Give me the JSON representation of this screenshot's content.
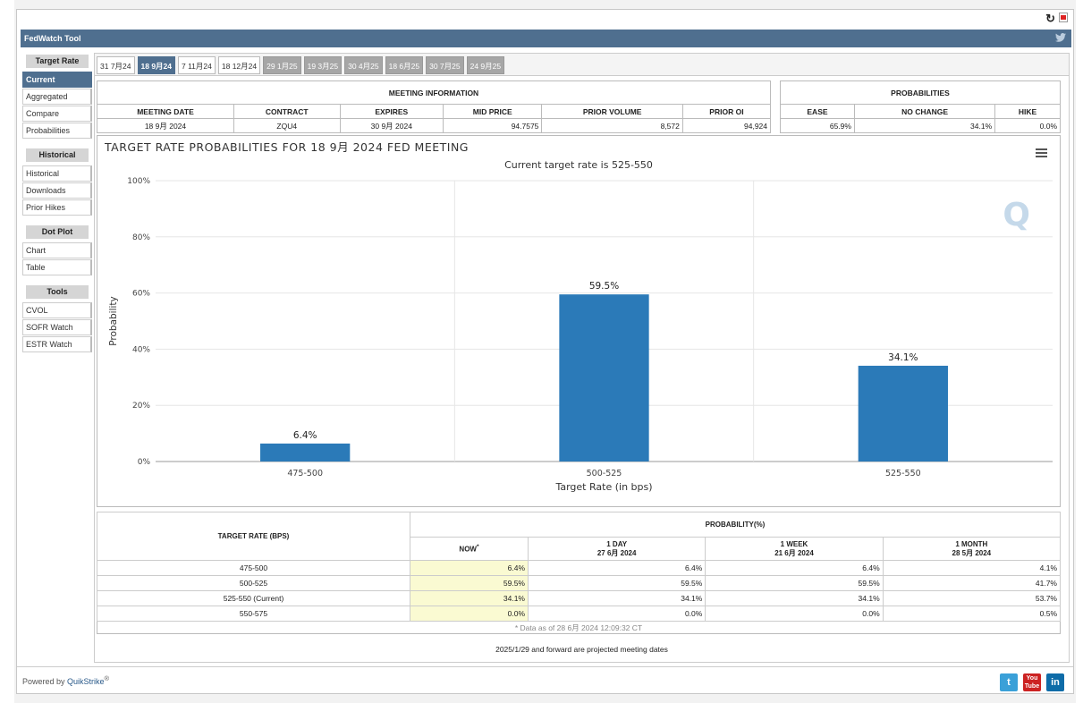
{
  "app": {
    "title": "FedWatch Tool",
    "powered_by": "Powered by ",
    "brand": "QuikStrike",
    "brand_mark": "®"
  },
  "sidebar": {
    "groups": [
      {
        "label": "Target Rate",
        "items": [
          "Current",
          "Aggregated",
          "Compare",
          "Probabilities"
        ]
      },
      {
        "label": "Historical",
        "items": [
          "Historical",
          "Downloads",
          "Prior Hikes"
        ]
      },
      {
        "label": "Dot Plot",
        "items": [
          "Chart",
          "Table"
        ]
      },
      {
        "label": "Tools",
        "items": [
          "CVOL",
          "SOFR Watch",
          "ESTR Watch"
        ]
      }
    ],
    "active_item": "Current"
  },
  "tabs": [
    {
      "label": "31 7月24",
      "state": "normal"
    },
    {
      "label": "18 9月24",
      "state": "active"
    },
    {
      "label": "7 11月24",
      "state": "normal"
    },
    {
      "label": "18 12月24",
      "state": "normal"
    },
    {
      "label": "29 1月25",
      "state": "gray"
    },
    {
      "label": "19 3月25",
      "state": "gray"
    },
    {
      "label": "30 4月25",
      "state": "gray"
    },
    {
      "label": "18 6月25",
      "state": "gray"
    },
    {
      "label": "30 7月25",
      "state": "gray"
    },
    {
      "label": "24 9月25",
      "state": "gray"
    }
  ],
  "meeting_info": {
    "title": "MEETING INFORMATION",
    "headers": [
      "MEETING DATE",
      "CONTRACT",
      "EXPIRES",
      "MID PRICE",
      "PRIOR VOLUME",
      "PRIOR OI"
    ],
    "values": [
      "18 9月 2024",
      "ZQU4",
      "30 9月 2024",
      "94.7575",
      "8,572",
      "94,924"
    ]
  },
  "probabilities": {
    "title": "PROBABILITIES",
    "headers": [
      "EASE",
      "NO CHANGE",
      "HIKE"
    ],
    "values": [
      "65.9%",
      "34.1%",
      "0.0%"
    ]
  },
  "chart_data": {
    "type": "bar",
    "title": "TARGET RATE PROBABILITIES FOR 18 9月 2024 FED MEETING",
    "subtitle": "Current target rate is 525-550",
    "xlabel": "Target Rate (in bps)",
    "ylabel": "Probability",
    "categories": [
      "475-500",
      "500-525",
      "525-550"
    ],
    "values": [
      6.4,
      59.5,
      34.1
    ],
    "data_labels": [
      "6.4%",
      "59.5%",
      "34.1%"
    ],
    "ylim": [
      0,
      100
    ],
    "yticks": [
      "0%",
      "20%",
      "40%",
      "60%",
      "80%",
      "100%"
    ],
    "bar_color": "#2b7ab8",
    "grid": true,
    "menu_icon": "hamburger-icon"
  },
  "prob_table": {
    "col1_header": "TARGET RATE (BPS)",
    "group_header": "PROBABILITY(%)",
    "now_label": "NOW",
    "now_mark": "*",
    "periods": [
      {
        "label": "1 DAY",
        "date": "27 6月 2024"
      },
      {
        "label": "1 WEEK",
        "date": "21 6月 2024"
      },
      {
        "label": "1 MONTH",
        "date": "28 5月 2024"
      }
    ],
    "rows": [
      {
        "rate": "475-500",
        "now": "6.4%",
        "d1": "6.4%",
        "w1": "6.4%",
        "m1": "4.1%"
      },
      {
        "rate": "500-525",
        "now": "59.5%",
        "d1": "59.5%",
        "w1": "59.5%",
        "m1": "41.7%"
      },
      {
        "rate": "525-550 (Current)",
        "now": "34.1%",
        "d1": "34.1%",
        "w1": "34.1%",
        "m1": "53.7%"
      },
      {
        "rate": "550-575",
        "now": "0.0%",
        "d1": "0.0%",
        "w1": "0.0%",
        "m1": "0.5%"
      }
    ],
    "data_note": "* Data as of 28 6月 2024 12:09:32 CT"
  },
  "footnote": "2025/1/29 and forward are projected meeting dates",
  "colors": {
    "header_blue": "#4f6f8f",
    "twitter": "#3aa0d8",
    "youtube": "#cc2222",
    "linkedin": "#0e6ca8"
  },
  "icons": {
    "refresh": "refresh-icon",
    "pdf": "pdf-icon",
    "twitter": "twitter-icon",
    "youtube": "youtube-icon",
    "linkedin": "linkedin-icon"
  },
  "social": {
    "youtube_text": "You",
    "youtube_text2": "Tube",
    "linkedin_text": "in",
    "twitter_glyph": "t"
  }
}
